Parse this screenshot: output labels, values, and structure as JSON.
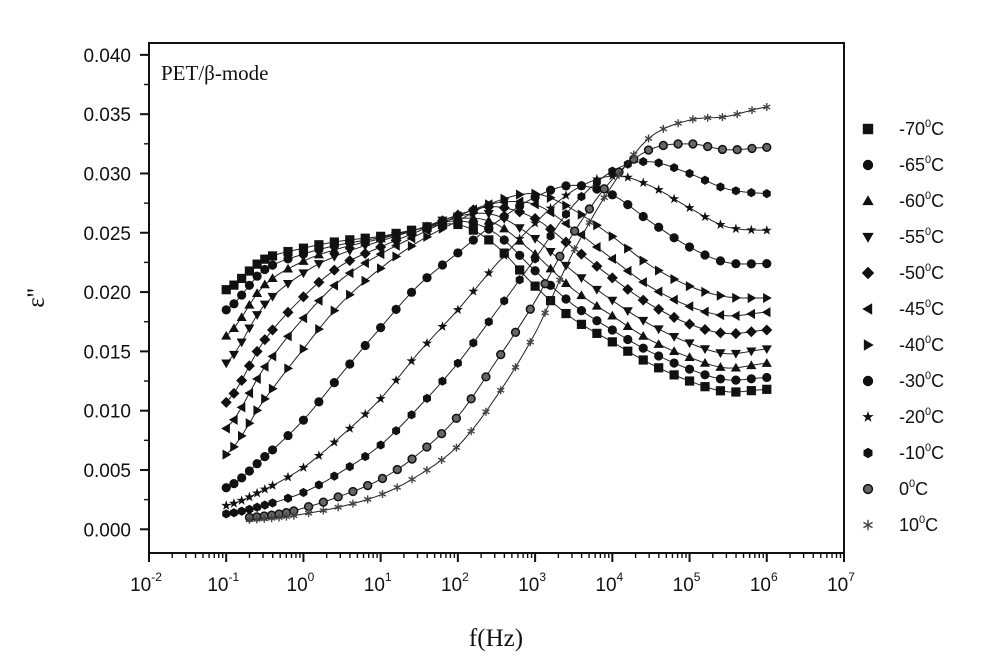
{
  "chart_data": {
    "type": "line",
    "annotation": "PET/β-mode",
    "xlabel": "f(Hz)",
    "ylabel": "ε''",
    "x_scale": "log",
    "xlim": [
      0.01,
      10000000
    ],
    "ylim": [
      -0.002,
      0.041
    ],
    "x_ticks": [
      {
        "base": "10",
        "exp": "-2"
      },
      {
        "base": "10",
        "exp": "-1"
      },
      {
        "base": "10",
        "exp": "0"
      },
      {
        "base": "10",
        "exp": "1"
      },
      {
        "base": "10",
        "exp": "2"
      },
      {
        "base": "10",
        "exp": "3"
      },
      {
        "base": "10",
        "exp": "4"
      },
      {
        "base": "10",
        "exp": "5"
      },
      {
        "base": "10",
        "exp": "6"
      },
      {
        "base": "10",
        "exp": "7"
      }
    ],
    "y_ticks": [
      "0.000",
      "0.005",
      "0.010",
      "0.015",
      "0.020",
      "0.025",
      "0.030",
      "0.035",
      "0.040"
    ],
    "legend_position": "right",
    "series": [
      {
        "label_base": "-70",
        "label_sup": "0",
        "label_unit": "C",
        "marker": "square",
        "points": [
          [
            0.1,
            0.0202
          ],
          [
            0.3,
            0.0227
          ],
          [
            1,
            0.0237
          ],
          [
            3,
            0.0243
          ],
          [
            10,
            0.0247
          ],
          [
            30,
            0.0253
          ],
          [
            100,
            0.0257
          ],
          [
            300,
            0.024
          ],
          [
            1000,
            0.0205
          ],
          [
            3000,
            0.0178
          ],
          [
            10000,
            0.0158
          ],
          [
            30000,
            0.014
          ],
          [
            100000,
            0.0125
          ],
          [
            300000,
            0.0116
          ],
          [
            1000000,
            0.0118
          ]
        ]
      },
      {
        "label_base": "-65",
        "label_sup": "0",
        "label_unit": "C",
        "marker": "circle",
        "points": [
          [
            0.1,
            0.0185
          ],
          [
            0.3,
            0.0218
          ],
          [
            1,
            0.0232
          ],
          [
            3,
            0.024
          ],
          [
            10,
            0.0246
          ],
          [
            30,
            0.0253
          ],
          [
            100,
            0.026
          ],
          [
            300,
            0.025
          ],
          [
            1000,
            0.0218
          ],
          [
            3000,
            0.019
          ],
          [
            10000,
            0.0168
          ],
          [
            30000,
            0.015
          ],
          [
            100000,
            0.0135
          ],
          [
            300000,
            0.0126
          ],
          [
            1000000,
            0.0128
          ]
        ]
      },
      {
        "label_base": "-60",
        "label_sup": "0",
        "label_unit": "C",
        "marker": "triangle-up",
        "points": [
          [
            0.1,
            0.0163
          ],
          [
            0.3,
            0.0205
          ],
          [
            1,
            0.0226
          ],
          [
            3,
            0.0237
          ],
          [
            10,
            0.0245
          ],
          [
            30,
            0.0253
          ],
          [
            100,
            0.0262
          ],
          [
            300,
            0.0258
          ],
          [
            1000,
            0.0232
          ],
          [
            3000,
            0.0203
          ],
          [
            10000,
            0.018
          ],
          [
            30000,
            0.016
          ],
          [
            100000,
            0.0145
          ],
          [
            300000,
            0.0136
          ],
          [
            1000000,
            0.014
          ]
        ]
      },
      {
        "label_base": "-55",
        "label_sup": "0",
        "label_unit": "C",
        "marker": "triangle-down",
        "points": [
          [
            0.1,
            0.014
          ],
          [
            0.3,
            0.0188
          ],
          [
            1,
            0.0216
          ],
          [
            3,
            0.0232
          ],
          [
            10,
            0.0243
          ],
          [
            30,
            0.0253
          ],
          [
            100,
            0.0264
          ],
          [
            300,
            0.0265
          ],
          [
            1000,
            0.0245
          ],
          [
            3000,
            0.0218
          ],
          [
            10000,
            0.0193
          ],
          [
            30000,
            0.0173
          ],
          [
            100000,
            0.0157
          ],
          [
            300000,
            0.0148
          ],
          [
            1000000,
            0.0152
          ]
        ]
      },
      {
        "label_base": "-50",
        "label_sup": "0",
        "label_unit": "C",
        "marker": "diamond",
        "points": [
          [
            0.1,
            0.0107
          ],
          [
            0.3,
            0.0158
          ],
          [
            1,
            0.0196
          ],
          [
            3,
            0.0222
          ],
          [
            10,
            0.0238
          ],
          [
            30,
            0.0251
          ],
          [
            100,
            0.0265
          ],
          [
            300,
            0.0272
          ],
          [
            1000,
            0.0262
          ],
          [
            3000,
            0.0238
          ],
          [
            10000,
            0.0212
          ],
          [
            30000,
            0.019
          ],
          [
            100000,
            0.0173
          ],
          [
            300000,
            0.0165
          ],
          [
            1000000,
            0.0168
          ]
        ]
      },
      {
        "label_base": "-45",
        "label_sup": "0",
        "label_unit": "C",
        "marker": "triangle-left",
        "points": [
          [
            0.1,
            0.0085
          ],
          [
            0.3,
            0.0135
          ],
          [
            1,
            0.0178
          ],
          [
            3,
            0.021
          ],
          [
            10,
            0.0232
          ],
          [
            30,
            0.0248
          ],
          [
            100,
            0.0264
          ],
          [
            300,
            0.0275
          ],
          [
            1000,
            0.0274
          ],
          [
            3000,
            0.0254
          ],
          [
            10000,
            0.0228
          ],
          [
            30000,
            0.0205
          ],
          [
            100000,
            0.0188
          ],
          [
            300000,
            0.018
          ],
          [
            1000000,
            0.0183
          ]
        ]
      },
      {
        "label_base": "-40",
        "label_sup": "0",
        "label_unit": "C",
        "marker": "triangle-right",
        "points": [
          [
            0.1,
            0.0063
          ],
          [
            0.3,
            0.0108
          ],
          [
            1,
            0.0152
          ],
          [
            3,
            0.019
          ],
          [
            10,
            0.022
          ],
          [
            30,
            0.0242
          ],
          [
            100,
            0.026
          ],
          [
            300,
            0.0276
          ],
          [
            1000,
            0.0283
          ],
          [
            3000,
            0.027
          ],
          [
            10000,
            0.0247
          ],
          [
            30000,
            0.0223
          ],
          [
            100000,
            0.0205
          ],
          [
            300000,
            0.0196
          ],
          [
            1000000,
            0.0195
          ]
        ]
      },
      {
        "label_base": "-30",
        "label_sup": "0",
        "label_unit": "C",
        "marker": "circle",
        "points": [
          [
            0.1,
            0.0035
          ],
          [
            0.3,
            0.006
          ],
          [
            1,
            0.0092
          ],
          [
            3,
            0.013
          ],
          [
            10,
            0.017
          ],
          [
            30,
            0.0205
          ],
          [
            100,
            0.0233
          ],
          [
            300,
            0.0258
          ],
          [
            1000,
            0.028
          ],
          [
            3000,
            0.029
          ],
          [
            10000,
            0.0282
          ],
          [
            30000,
            0.026
          ],
          [
            100000,
            0.0238
          ],
          [
            300000,
            0.0225
          ],
          [
            1000000,
            0.0224
          ]
        ]
      },
      {
        "label_base": "-20",
        "label_sup": "0",
        "label_unit": "C",
        "marker": "star",
        "points": [
          [
            0.1,
            0.002
          ],
          [
            0.3,
            0.0033
          ],
          [
            1,
            0.0052
          ],
          [
            3,
            0.0078
          ],
          [
            10,
            0.011
          ],
          [
            30,
            0.0148
          ],
          [
            100,
            0.0185
          ],
          [
            300,
            0.0222
          ],
          [
            1000,
            0.0258
          ],
          [
            3000,
            0.0285
          ],
          [
            10000,
            0.0298
          ],
          [
            30000,
            0.029
          ],
          [
            100000,
            0.0271
          ],
          [
            300000,
            0.0255
          ],
          [
            1000000,
            0.0252
          ]
        ]
      },
      {
        "label_base": "-10",
        "label_sup": "0",
        "label_unit": "C",
        "marker": "hexagon",
        "points": [
          [
            0.1,
            0.0013
          ],
          [
            0.3,
            0.002
          ],
          [
            1,
            0.0031
          ],
          [
            3,
            0.0048
          ],
          [
            10,
            0.0071
          ],
          [
            30,
            0.0102
          ],
          [
            100,
            0.014
          ],
          [
            300,
            0.0182
          ],
          [
            1000,
            0.0228
          ],
          [
            3000,
            0.0272
          ],
          [
            10000,
            0.0302
          ],
          [
            30000,
            0.031
          ],
          [
            100000,
            0.03
          ],
          [
            300000,
            0.0287
          ],
          [
            1000000,
            0.0283
          ]
        ]
      },
      {
        "label_base": "0",
        "label_sup": "0",
        "label_unit": "C",
        "marker": "circle-open",
        "points": [
          [
            0.2,
            0.001
          ],
          [
            0.5,
            0.0013
          ],
          [
            1,
            0.0018
          ],
          [
            3,
            0.0028
          ],
          [
            10,
            0.0042
          ],
          [
            30,
            0.0063
          ],
          [
            100,
            0.0095
          ],
          [
            300,
            0.014
          ],
          [
            1000,
            0.0192
          ],
          [
            3000,
            0.0248
          ],
          [
            10000,
            0.0295
          ],
          [
            30000,
            0.032
          ],
          [
            100000,
            0.0325
          ],
          [
            300000,
            0.032
          ],
          [
            1000000,
            0.0322
          ]
        ]
      },
      {
        "label_base": "10",
        "label_sup": "0",
        "label_unit": "C",
        "marker": "asterisk",
        "points": [
          [
            0.2,
            0.0008
          ],
          [
            0.5,
            0.001
          ],
          [
            1,
            0.0013
          ],
          [
            3,
            0.0019
          ],
          [
            10,
            0.0029
          ],
          [
            30,
            0.0045
          ],
          [
            100,
            0.007
          ],
          [
            300,
            0.011
          ],
          [
            1000,
            0.0165
          ],
          [
            3000,
            0.0232
          ],
          [
            10000,
            0.029
          ],
          [
            30000,
            0.033
          ],
          [
            100000,
            0.0345
          ],
          [
            300000,
            0.0348
          ],
          [
            1000000,
            0.0356
          ]
        ]
      }
    ]
  }
}
